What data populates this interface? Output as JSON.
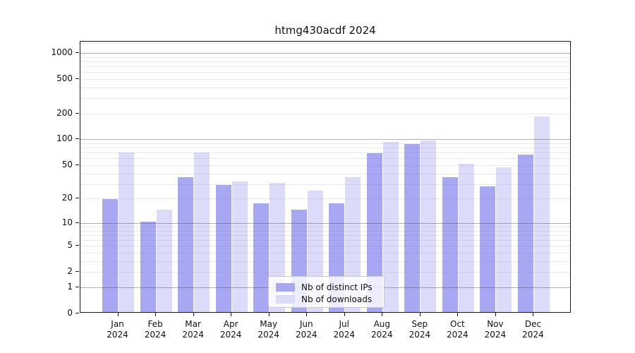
{
  "title": "htmg430acdf 2024",
  "chart_data": {
    "type": "bar",
    "title": "htmg430acdf 2024",
    "categories": [
      "Jan 2024",
      "Feb 2024",
      "Mar 2024",
      "Apr 2024",
      "May 2024",
      "Jun 2024",
      "Jul 2024",
      "Aug 2024",
      "Sep 2024",
      "Oct 2024",
      "Nov 2024",
      "Dec 2024"
    ],
    "x_tick_months": [
      "Jan",
      "Feb",
      "Mar",
      "Apr",
      "May",
      "Jun",
      "Jul",
      "Aug",
      "Sep",
      "Oct",
      "Nov",
      "Dec"
    ],
    "x_tick_year": "2024",
    "series": [
      {
        "name": "Nb of distinct IPs",
        "color": "#a7a7f4",
        "values": [
          19,
          10,
          35,
          28,
          17,
          14,
          17,
          66,
          85,
          35,
          27,
          64
        ]
      },
      {
        "name": "Nb of downloads",
        "color": "#dcdcfa",
        "values": [
          68,
          14,
          68,
          31,
          30,
          24,
          35,
          90,
          93,
          50,
          45,
          178
        ]
      }
    ],
    "xlabel": "",
    "ylabel": "",
    "y_scale": "log1p",
    "y_ticks": [
      0,
      1,
      2,
      5,
      10,
      20,
      50,
      100,
      200,
      500,
      1000
    ],
    "grid_major_lines": [
      1,
      10,
      100,
      1000
    ],
    "grid_minor_multipliers": [
      2,
      3,
      4,
      5,
      6,
      7,
      8,
      9
    ],
    "grid_minor_decades": [
      1,
      10,
      100
    ],
    "ylim": [
      0,
      1120
    ],
    "legend_position": "lower-center",
    "grid": "on"
  },
  "colors": {
    "bar_distinct_ips": "#a7a7f4",
    "bar_downloads": "#dcdcfa",
    "axis": "#1a1a1a",
    "grid_major": "#b0b0b0",
    "grid_minor": "#e9e9e9",
    "background": "#ffffff"
  }
}
